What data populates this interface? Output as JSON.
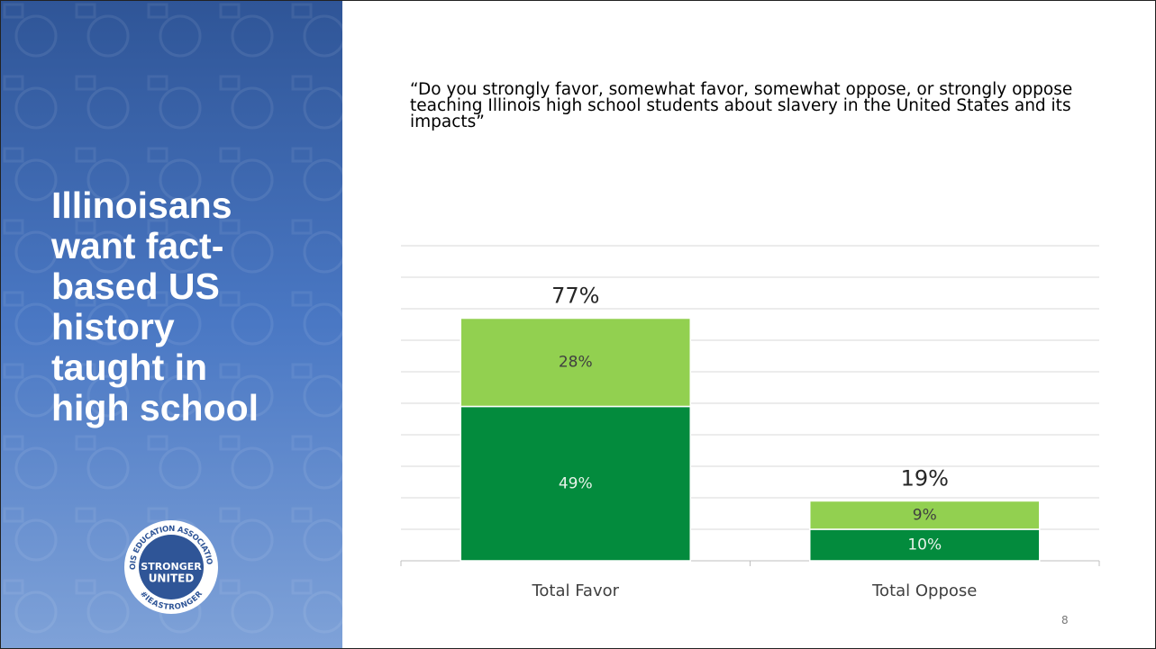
{
  "slide": {
    "title": "Illinoisans want fact-based US history taught in high school",
    "logo": {
      "ring_top": "ILLINOIS EDUCATION ASSOCIATION-NEA",
      "ring_bottom": "#IEASTRONGER",
      "line1": "STRONGER",
      "line2": "UNITED"
    },
    "page_number": "8"
  },
  "chart_data": {
    "type": "bar",
    "stacked": true,
    "title": "“Do you strongly favor, somewhat favor, somewhat oppose, or strongly oppose teaching Illinois high school students about slavery in the United States and its impacts”",
    "categories": [
      "Total Favor",
      "Total Oppose"
    ],
    "series": [
      {
        "color": "#038b3d",
        "values": [
          49,
          10
        ],
        "value_labels": [
          "49%",
          "10%"
        ]
      },
      {
        "color": "#92d050",
        "values": [
          28,
          9
        ],
        "value_labels": [
          "28%",
          "9%"
        ]
      }
    ],
    "totals": [
      77,
      19
    ],
    "total_labels": [
      "77%",
      "19%"
    ],
    "ylim": [
      0,
      100
    ],
    "yticks": [
      0,
      10,
      20,
      30,
      40,
      50,
      60,
      70,
      80,
      90,
      100
    ],
    "grid": true
  }
}
